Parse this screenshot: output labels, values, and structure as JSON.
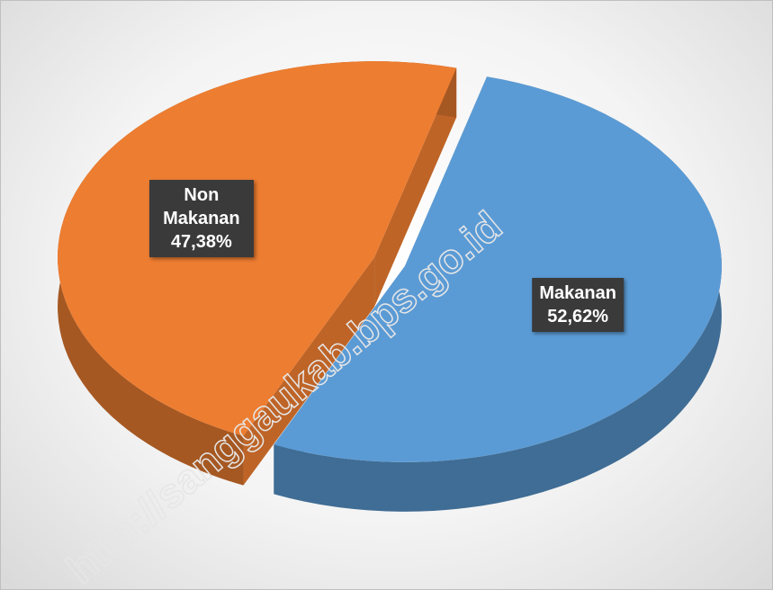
{
  "chart_data": {
    "type": "pie",
    "categories": [
      "Makanan",
      "Non Makanan"
    ],
    "values": [
      52.62,
      47.38
    ],
    "value_labels": [
      "52,62%",
      "47,38%"
    ],
    "colors": [
      "#5b9bd5",
      "#ed7d31"
    ],
    "watermark": "http://sanggaukab.bps.go.id"
  }
}
